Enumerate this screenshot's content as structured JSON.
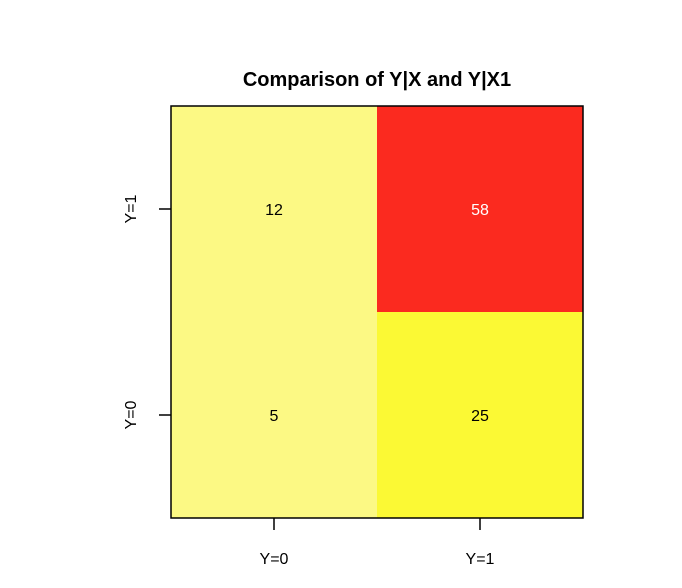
{
  "chart_data": {
    "type": "heatmap",
    "title": "Comparison of Y|X and Y|X1",
    "xlabel": "",
    "ylabel": "",
    "x_categories": [
      "Y=0",
      "Y=1"
    ],
    "y_categories": [
      "Y=0",
      "Y=1"
    ],
    "cells": [
      {
        "x": "Y=0",
        "y": "Y=1",
        "value": 12,
        "color": "#FCF984",
        "text_color": "#000000"
      },
      {
        "x": "Y=1",
        "y": "Y=1",
        "value": 58,
        "color": "#FB2A1F",
        "text_color": "#FFFFFF"
      },
      {
        "x": "Y=0",
        "y": "Y=0",
        "value": 5,
        "color": "#FCF984",
        "text_color": "#000000"
      },
      {
        "x": "Y=1",
        "y": "Y=0",
        "value": 25,
        "color": "#FBF934",
        "text_color": "#000000"
      }
    ],
    "grid": false,
    "legend": "none"
  }
}
